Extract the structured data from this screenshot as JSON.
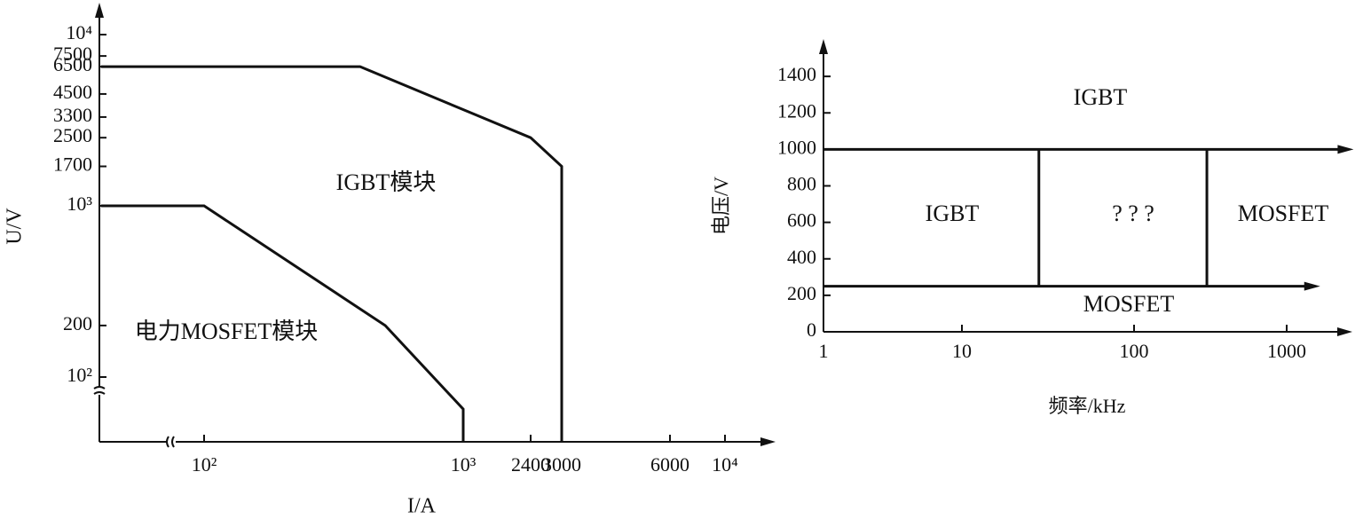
{
  "chart_data": [
    {
      "type": "line",
      "x_label": "I/A",
      "y_label": "U/V",
      "log_x": true,
      "log_y": true,
      "color": "#111111",
      "xlim": [
        40,
        15000
      ],
      "ylim": [
        42,
        15000
      ],
      "xticks": [
        {
          "value": 100,
          "label": "10²"
        },
        {
          "value": 1000,
          "label": "10³"
        },
        2400,
        3000,
        6000,
        {
          "value": 10000,
          "label": "10⁴"
        }
      ],
      "yticks": [
        {
          "value": 100,
          "label": "10²"
        },
        200,
        {
          "value": 1000,
          "label": "10³"
        },
        1700,
        2500,
        3300,
        4500,
        6500,
        7500,
        {
          "value": 10000,
          "label": "10⁴"
        }
      ],
      "series": [
        {
          "x": [
            40,
            400,
            2400,
            3000,
            3000
          ],
          "values": [
            6500,
            6500,
            2500,
            1700,
            42
          ]
        },
        {
          "x": [
            40,
            100,
            500,
            1000,
            1000
          ],
          "values": [
            1000,
            1000,
            200,
            65,
            42
          ]
        }
      ],
      "annotations": [
        "IGBT模块",
        "电力MOSFET模块"
      ]
    },
    {
      "type": "line",
      "x_label": "频率/kHz",
      "y_label": "电压/V",
      "log_x": true,
      "log_y": false,
      "color": "#111111",
      "xlim": [
        1,
        2700
      ],
      "ylim": [
        0,
        1600
      ],
      "xticks": [
        1,
        10,
        100,
        1000
      ],
      "yticks": [
        0,
        200,
        400,
        600,
        800,
        1000,
        1200,
        1400
      ],
      "series": [
        {
          "x": [
            1,
            2400
          ],
          "values": [
            1000,
            1000
          ],
          "arrow": true
        },
        {
          "x": [
            1,
            1450
          ],
          "values": [
            250,
            250
          ],
          "arrow": true
        },
        {
          "x": [
            28,
            28
          ],
          "values": [
            250,
            1000
          ]
        },
        {
          "x": [
            300,
            300
          ],
          "values": [
            250,
            1000
          ]
        }
      ],
      "annotations": [
        "IGBT",
        "IGBT",
        "? ? ?",
        "MOSFET",
        "MOSFET"
      ]
    }
  ]
}
